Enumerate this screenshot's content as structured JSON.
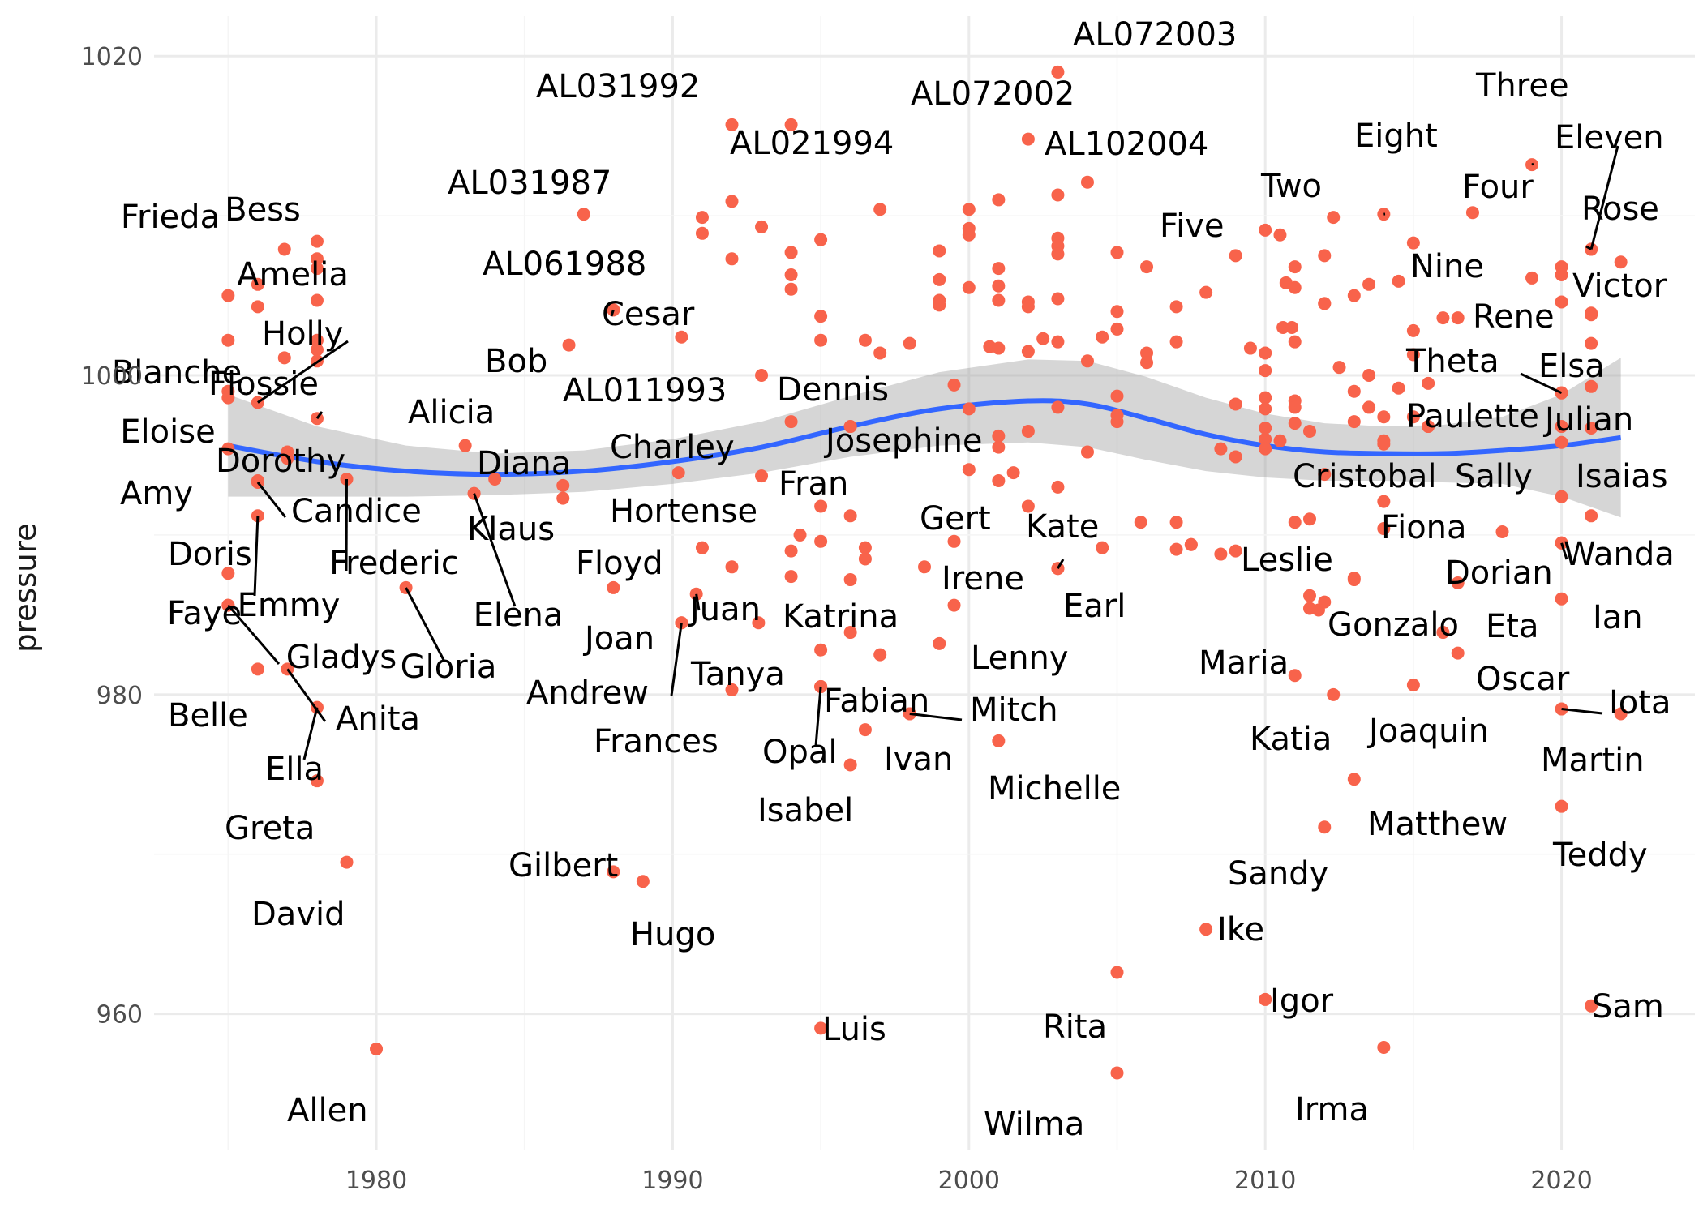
{
  "chart_data": {
    "type": "scatter",
    "title": "",
    "xlabel": "",
    "ylabel": "pressure",
    "xlim": [
      1972.5,
      2024.5
    ],
    "ylim": [
      951.5,
      1022.5
    ],
    "x_ticks": [
      1980,
      1990,
      2000,
      2010,
      2020
    ],
    "y_ticks": [
      960,
      980,
      1000,
      1020
    ],
    "grid": true,
    "colors": {
      "points": "#f8634b",
      "smooth_line": "#3366ff",
      "confidence_band": "#999999",
      "label_text": "#000000",
      "grid": "#ebebeb"
    },
    "smooth": {
      "method": "loess",
      "x": [
        1975,
        1978,
        1981,
        1984,
        1987,
        1990,
        1993,
        1996,
        1999,
        2002,
        2004,
        2006,
        2008,
        2010,
        2012,
        2014,
        2016,
        2018,
        2020,
        2022
      ],
      "y": [
        995.6,
        994.6,
        994.0,
        993.8,
        994.0,
        994.6,
        995.5,
        996.8,
        997.9,
        998.4,
        998.2,
        997.3,
        996.3,
        995.6,
        995.2,
        995.1,
        995.1,
        995.3,
        995.6,
        996.1
      ],
      "band_half_width": [
        3.2,
        2.2,
        1.6,
        1.3,
        1.3,
        1.4,
        1.6,
        1.9,
        2.3,
        2.6,
        2.7,
        2.6,
        2.3,
        2.0,
        1.8,
        1.7,
        1.8,
        2.1,
        3.2,
        5.0
      ]
    },
    "labeled_points": [
      {
        "name": "Frieda",
        "x": 1976.9,
        "y": 1007.9
      },
      {
        "name": "Bess",
        "x": 1978.0,
        "y": 1008.4
      },
      {
        "name": "Amelia",
        "x": 1978.0,
        "y": 1004.7
      },
      {
        "name": "Holly",
        "x": 1976.0,
        "y": 998.3
      },
      {
        "name": "Blanche",
        "x": 1975.0,
        "y": 999.0
      },
      {
        "name": "Flossie",
        "x": 1978.0,
        "y": 997.3
      },
      {
        "name": "Eloise",
        "x": 1975.0,
        "y": 995.4
      },
      {
        "name": "Dorothy",
        "x": 1977.0,
        "y": 994.8
      },
      {
        "name": "Amy",
        "x": 1976.0,
        "y": 993.3
      },
      {
        "name": "Candice",
        "x": 1976.0,
        "y": 993.4
      },
      {
        "name": "Frederic",
        "x": 1979.0,
        "y": 993.5
      },
      {
        "name": "Doris",
        "x": 1975.0,
        "y": 987.6
      },
      {
        "name": "Emmy",
        "x": 1976.0,
        "y": 991.2
      },
      {
        "name": "Faye",
        "x": 1975.0,
        "y": 985.6
      },
      {
        "name": "Gladys",
        "x": 1975.0,
        "y": 985.6
      },
      {
        "name": "Gloria",
        "x": 1981.0,
        "y": 986.7
      },
      {
        "name": "Belle",
        "x": 1976.0,
        "y": 981.6
      },
      {
        "name": "Anita",
        "x": 1977.0,
        "y": 981.6
      },
      {
        "name": "Ella",
        "x": 1978.0,
        "y": 979.2
      },
      {
        "name": "Greta",
        "x": 1978.0,
        "y": 974.6
      },
      {
        "name": "David",
        "x": 1979.0,
        "y": 969.5
      },
      {
        "name": "Allen",
        "x": 1980.0,
        "y": 957.8
      },
      {
        "name": "AL031987",
        "x": 1987.0,
        "y": 1010.1
      },
      {
        "name": "AL061988",
        "x": 1988.0,
        "y": 1004.1
      },
      {
        "name": "Cesar",
        "x": 1988.0,
        "y": 1004.1
      },
      {
        "name": "Bob",
        "x": 1986.5,
        "y": 1001.9
      },
      {
        "name": "Alicia",
        "x": 1983.0,
        "y": 995.6
      },
      {
        "name": "Diana",
        "x": 1984.0,
        "y": 993.5
      },
      {
        "name": "Klaus",
        "x": 1983.3,
        "y": 992.6
      },
      {
        "name": "Elena",
        "x": 1983.3,
        "y": 992.6
      },
      {
        "name": "AL031992",
        "x": 1992.0,
        "y": 1015.7
      },
      {
        "name": "AL021994",
        "x": 1994.0,
        "y": 1015.7
      },
      {
        "name": "AL011993",
        "x": 1993.0,
        "y": 1000.0
      },
      {
        "name": "Charley",
        "x": 1990.2,
        "y": 993.9
      },
      {
        "name": "Hortense",
        "x": 1988.0,
        "y": 986.7
      },
      {
        "name": "Floyd",
        "x": 1990.8,
        "y": 986.3
      },
      {
        "name": "Juan",
        "x": 1991.0,
        "y": 989.2
      },
      {
        "name": "Joan",
        "x": 1990.3,
        "y": 984.5
      },
      {
        "name": "Andrew",
        "x": 1990.3,
        "y": 984.5
      },
      {
        "name": "Gilbert",
        "x": 1988.0,
        "y": 968.9
      },
      {
        "name": "Hugo",
        "x": 1989.0,
        "y": 968.3
      },
      {
        "name": "Dennis",
        "x": 1994.0,
        "y": 997.1
      },
      {
        "name": "Fran",
        "x": 1996.0,
        "y": 996.8
      },
      {
        "name": "Josephine",
        "x": 1996.0,
        "y": 996.8
      },
      {
        "name": "Katrina",
        "x": 1995.0,
        "y": 991.8
      },
      {
        "name": "Tanya",
        "x": 1995.0,
        "y": 980.5
      },
      {
        "name": "Fabian",
        "x": 1995.0,
        "y": 980.5
      },
      {
        "name": "Opal",
        "x": 1995.0,
        "y": 980.5
      },
      {
        "name": "Frances",
        "x": 1992.0,
        "y": 980.3
      },
      {
        "name": "Isabel",
        "x": 1996.0,
        "y": 975.6
      },
      {
        "name": "Ivan",
        "x": 1998.0,
        "y": 978.8
      },
      {
        "name": "Mitch",
        "x": 1998.0,
        "y": 978.8
      },
      {
        "name": "Luis",
        "x": 1995.0,
        "y": 959.1
      },
      {
        "name": "AL072002",
        "x": 2002.0,
        "y": 1014.8
      },
      {
        "name": "AL072003",
        "x": 2003.0,
        "y": 1019.0
      },
      {
        "name": "AL102004",
        "x": 2003.0,
        "y": 1011.3
      },
      {
        "name": "Gert",
        "x": 1999.5,
        "y": 989.6
      },
      {
        "name": "Irene",
        "x": 2001.0,
        "y": 993.4
      },
      {
        "name": "Kate",
        "x": 2003.0,
        "y": 987.9
      },
      {
        "name": "Earl",
        "x": 2003.0,
        "y": 987.9
      },
      {
        "name": "Lenny",
        "x": 1999.0,
        "y": 983.2
      },
      {
        "name": "Michelle",
        "x": 2001.0,
        "y": 977.1
      },
      {
        "name": "Rita",
        "x": 2005.0,
        "y": 962.6
      },
      {
        "name": "Wilma",
        "x": 2005.0,
        "y": 956.3
      },
      {
        "name": "Five",
        "x": 2009.0,
        "y": 1007.5
      },
      {
        "name": "Two",
        "x": 2010.0,
        "y": 1009.1
      },
      {
        "name": "Leslie",
        "x": 2008.5,
        "y": 988.8
      },
      {
        "name": "Maria",
        "x": 2011.5,
        "y": 986.2
      },
      {
        "name": "Katia",
        "x": 2011.0,
        "y": 981.2
      },
      {
        "name": "Ike",
        "x": 2008.0,
        "y": 965.3
      },
      {
        "name": "Sandy",
        "x": 2012.0,
        "y": 971.7
      },
      {
        "name": "Igor",
        "x": 2010.0,
        "y": 960.9
      },
      {
        "name": "Irma",
        "x": 2014.0,
        "y": 957.9
      },
      {
        "name": "Eight",
        "x": 2014.0,
        "y": 1010.1
      },
      {
        "name": "Nine",
        "x": 2015.0,
        "y": 1008.3
      },
      {
        "name": "Cristobal",
        "x": 2012.0,
        "y": 993.8
      },
      {
        "name": "Fiona",
        "x": 2014.0,
        "y": 992.1
      },
      {
        "name": "Gonzalo",
        "x": 2013.0,
        "y": 987.3
      },
      {
        "name": "Joaquin",
        "x": 2015.0,
        "y": 980.6
      },
      {
        "name": "Matthew",
        "x": 2013.0,
        "y": 974.7
      },
      {
        "name": "Three",
        "x": 2019.0,
        "y": 1013.2
      },
      {
        "name": "Four",
        "x": 2017.0,
        "y": 1010.2
      },
      {
        "name": "Eleven",
        "x": 2021.0,
        "y": 1007.9
      },
      {
        "name": "Rose",
        "x": 2021.0,
        "y": 1007.9
      },
      {
        "name": "Rene",
        "x": 2016.5,
        "y": 1003.6
      },
      {
        "name": "Victor",
        "x": 2021.0,
        "y": 1003.9
      },
      {
        "name": "Theta",
        "x": 2020.0,
        "y": 998.9
      },
      {
        "name": "Elsa",
        "x": 2020.0,
        "y": 998.9
      },
      {
        "name": "Paulette",
        "x": 2015.5,
        "y": 996.8
      },
      {
        "name": "Julian",
        "x": 2021.0,
        "y": 996.7
      },
      {
        "name": "Sally",
        "x": 2018.0,
        "y": 990.2
      },
      {
        "name": "Isaias",
        "x": 2021.0,
        "y": 991.2
      },
      {
        "name": "Dorian",
        "x": 2016.5,
        "y": 987.0
      },
      {
        "name": "Wanda",
        "x": 2020.0,
        "y": 989.5
      },
      {
        "name": "Eta",
        "x": 2020.0,
        "y": 989.5
      },
      {
        "name": "Ian",
        "x": 2020.0,
        "y": 986.0
      },
      {
        "name": "Oscar",
        "x": 2016.5,
        "y": 982.6
      },
      {
        "name": "Iota",
        "x": 2020.0,
        "y": 979.1
      },
      {
        "name": "Martin",
        "x": 2022.0,
        "y": 978.8
      },
      {
        "name": "Teddy",
        "x": 2020.0,
        "y": 973.0
      },
      {
        "name": "Sam",
        "x": 2021.0,
        "y": 960.5
      }
    ],
    "unlabeled_points": [
      [
        1975,
        1005.0
      ],
      [
        1975,
        1002.2
      ],
      [
        1976,
        1005.7
      ],
      [
        1976,
        1004.3
      ],
      [
        1976.9,
        1001.1
      ],
      [
        1977.0,
        995.2
      ],
      [
        1975,
        998.6
      ],
      [
        1978,
        1007.3
      ],
      [
        1978,
        1006.7
      ],
      [
        1978,
        1002.2
      ],
      [
        1978,
        1001.6
      ],
      [
        1978,
        1000.9
      ],
      [
        1986.3,
        993.1
      ],
      [
        1986.3,
        992.3
      ],
      [
        1990.3,
        1002.4
      ],
      [
        1991.0,
        1009.9
      ],
      [
        1991.0,
        1008.9
      ],
      [
        1992.0,
        1010.9
      ],
      [
        1992.0,
        1007.3
      ],
      [
        1993.0,
        1009.3
      ],
      [
        1994.0,
        1007.7
      ],
      [
        1994.0,
        1006.3
      ],
      [
        1994.0,
        1005.4
      ],
      [
        1995.0,
        1008.5
      ],
      [
        1995.0,
        1003.7
      ],
      [
        1995.0,
        1002.2
      ],
      [
        1993.0,
        993.7
      ],
      [
        1992.0,
        988.0
      ],
      [
        1994.0,
        989.0
      ],
      [
        1994.0,
        987.4
      ],
      [
        1994.3,
        990.0
      ],
      [
        1996.0,
        991.2
      ],
      [
        1995.0,
        989.6
      ],
      [
        1996.0,
        987.2
      ],
      [
        1996.5,
        989.2
      ],
      [
        1996.5,
        988.5
      ],
      [
        1992.9,
        984.5
      ],
      [
        1995.0,
        982.8
      ],
      [
        1996.0,
        983.9
      ],
      [
        1997.0,
        982.5
      ],
      [
        1996.5,
        977.8
      ],
      [
        1997.0,
        1010.4
      ],
      [
        1996.5,
        1002.2
      ],
      [
        1997.0,
        1001.4
      ],
      [
        1998.0,
        1002.0
      ],
      [
        1999.0,
        1007.8
      ],
      [
        1999.0,
        1006.0
      ],
      [
        1999.0,
        1004.7
      ],
      [
        1999.0,
        1004.4
      ],
      [
        2000.0,
        1010.4
      ],
      [
        2000.0,
        1009.2
      ],
      [
        2000.0,
        1008.8
      ],
      [
        2000.0,
        1005.5
      ],
      [
        2000.0,
        997.9
      ],
      [
        1999.5,
        999.4
      ],
      [
        2000.0,
        994.1
      ],
      [
        1998.5,
        988.0
      ],
      [
        1999.5,
        985.6
      ],
      [
        2001.0,
        1011.0
      ],
      [
        2001.0,
        1006.7
      ],
      [
        2001.0,
        1005.6
      ],
      [
        2001.0,
        1004.7
      ],
      [
        2002.0,
        1004.6
      ],
      [
        2002.0,
        1004.3
      ],
      [
        2003.0,
        1004.8
      ],
      [
        2003.0,
        1008.6
      ],
      [
        2003.0,
        1008.1
      ],
      [
        2003.0,
        1007.6
      ],
      [
        2004.0,
        1012.1
      ],
      [
        2000.7,
        1001.8
      ],
      [
        2001.0,
        1001.7
      ],
      [
        2002.0,
        1001.5
      ],
      [
        2002.5,
        1002.3
      ],
      [
        2003.0,
        1002.1
      ],
      [
        2004.0,
        1000.9
      ],
      [
        2004.5,
        1002.4
      ],
      [
        2005.0,
        1007.7
      ],
      [
        2005.0,
        1004.0
      ],
      [
        2005.0,
        1002.9
      ],
      [
        2003.0,
        998.0
      ],
      [
        2005.0,
        998.7
      ],
      [
        2005.0,
        997.5
      ],
      [
        2005.0,
        997.1
      ],
      [
        2004.0,
        995.2
      ],
      [
        2001.0,
        996.2
      ],
      [
        2002.0,
        996.5
      ],
      [
        2001.0,
        995.5
      ],
      [
        2001.5,
        993.9
      ],
      [
        2002.0,
        991.8
      ],
      [
        2003.0,
        993.0
      ],
      [
        2004.5,
        989.2
      ],
      [
        2005.8,
        990.8
      ],
      [
        2006.0,
        1006.8
      ],
      [
        2006.0,
        1001.4
      ],
      [
        2006.0,
        1000.8
      ],
      [
        2007.0,
        1004.3
      ],
      [
        2008.0,
        1005.2
      ],
      [
        2007.0,
        1002.1
      ],
      [
        2007.0,
        990.8
      ],
      [
        2007.0,
        989.1
      ],
      [
        2007.5,
        989.4
      ],
      [
        2007.5,
        989.4
      ],
      [
        2008.5,
        995.4
      ],
      [
        2009.0,
        994.9
      ],
      [
        2009.0,
        998.2
      ],
      [
        2009.5,
        1001.7
      ],
      [
        2010.0,
        1001.4
      ],
      [
        2010.0,
        1000.3
      ],
      [
        2009.0,
        989.0
      ],
      [
        2010.5,
        1008.8
      ],
      [
        2011.0,
        1006.8
      ],
      [
        2011.0,
        1005.5
      ],
      [
        2010.7,
        1005.8
      ],
      [
        2010.6,
        1003.0
      ],
      [
        2010.9,
        1003.0
      ],
      [
        2011.0,
        1002.1
      ],
      [
        2011.0,
        998.4
      ],
      [
        2011.0,
        998.0
      ],
      [
        2011.5,
        996.5
      ],
      [
        2010.0,
        998.6
      ],
      [
        2010.0,
        997.9
      ],
      [
        2010.0,
        996.7
      ],
      [
        2010.0,
        996.0
      ],
      [
        2010.0,
        995.4
      ],
      [
        2010.5,
        995.9
      ],
      [
        2011.0,
        997.0
      ],
      [
        2011.0,
        990.8
      ],
      [
        2011.5,
        991.0
      ],
      [
        2012.0,
        1007.5
      ],
      [
        2012.0,
        1004.5
      ],
      [
        2012.5,
        1000.5
      ],
      [
        2013.0,
        999.0
      ],
      [
        2013.0,
        997.1
      ],
      [
        2013.5,
        998.0
      ],
      [
        2013.5,
        1000.0
      ],
      [
        2014.0,
        997.4
      ],
      [
        2014.0,
        995.9
      ],
      [
        2014.0,
        990.4
      ],
      [
        2013.0,
        987.2
      ],
      [
        2012.0,
        985.8
      ],
      [
        2011.8,
        985.3
      ],
      [
        2012.3,
        980.0
      ],
      [
        2011.5,
        985.4
      ],
      [
        2012.3,
        1009.9
      ],
      [
        2012.0,
        1004.5
      ],
      [
        2013.0,
        1005.0
      ],
      [
        2013.5,
        1005.7
      ],
      [
        2014.5,
        1005.9
      ],
      [
        2014.0,
        995.7
      ],
      [
        2014.5,
        999.2
      ],
      [
        2015.0,
        1002.8
      ],
      [
        2015.0,
        1001.3
      ],
      [
        2015.0,
        997.4
      ],
      [
        2015.5,
        999.5
      ],
      [
        2016.0,
        983.9
      ],
      [
        2016.0,
        1003.6
      ],
      [
        2019.0,
        1006.1
      ],
      [
        2020.0,
        1006.8
      ],
      [
        2020.0,
        1006.3
      ],
      [
        2020.0,
        1004.6
      ],
      [
        2021.0,
        1003.8
      ],
      [
        2021.0,
        1002.0
      ],
      [
        2021.0,
        999.3
      ],
      [
        2020.0,
        996.8
      ],
      [
        2020.0,
        995.8
      ],
      [
        2020.0,
        992.4
      ],
      [
        2022.0,
        1007.1
      ]
    ]
  }
}
